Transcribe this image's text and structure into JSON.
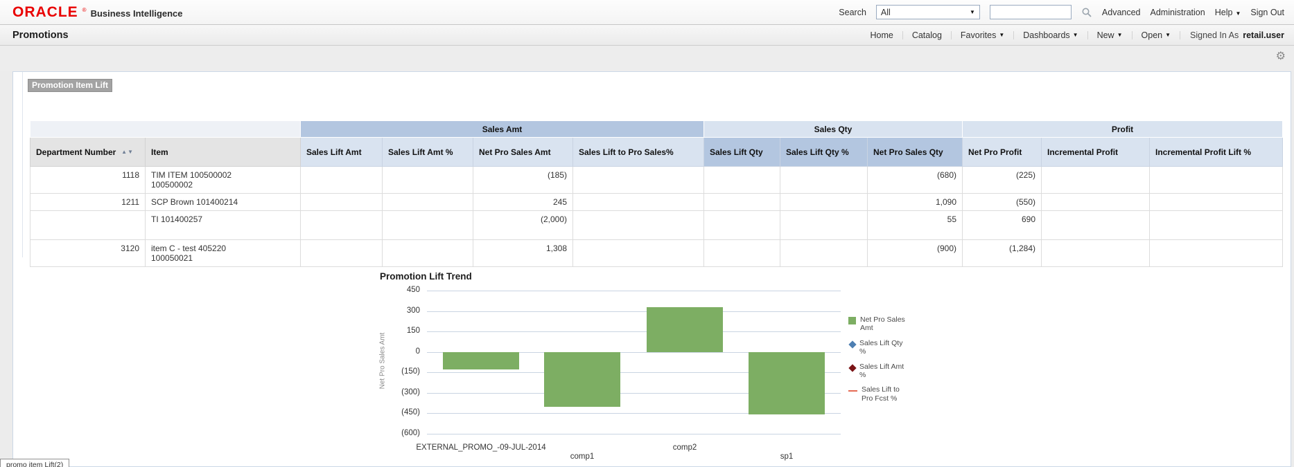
{
  "brand": {
    "logo": "ORACLE",
    "registered": "®",
    "product": "Business Intelligence"
  },
  "topbar": {
    "search_label": "Search",
    "search_scope": "All",
    "search_value": "",
    "advanced": "Advanced",
    "administration": "Administration",
    "help": "Help",
    "sign_out": "Sign Out"
  },
  "navbar": {
    "page_title": "Promotions",
    "home": "Home",
    "catalog": "Catalog",
    "favorites": "Favorites",
    "dashboards": "Dashboards",
    "new": "New",
    "open": "Open",
    "signed_in_as": "Signed In As",
    "user": "retail.user"
  },
  "report": {
    "title": "Promotion Item Lift"
  },
  "table": {
    "groups": [
      {
        "label": "",
        "span": 2,
        "tone": "plain"
      },
      {
        "label": "Sales Amt",
        "span": 4,
        "tone": "medium"
      },
      {
        "label": "Sales Qty",
        "span": 3,
        "tone": "light"
      },
      {
        "label": "Profit",
        "span": 3,
        "tone": "light"
      }
    ],
    "columns": [
      "Department Number",
      "Item",
      "Sales Lift Amt",
      "Sales Lift Amt %",
      "Net Pro Sales Amt",
      "Sales Lift to Pro Sales%",
      "Sales Lift Qty",
      "Sales Lift Qty %",
      "Net Pro Sales Qty",
      "Net Pro Profit",
      "Incremental Profit",
      "Incremental Profit Lift %"
    ],
    "rows": [
      [
        "1118",
        "TIM ITEM 100500002 100500002",
        "",
        "",
        "(185)",
        "",
        "",
        "",
        "(680)",
        "(225)",
        "",
        ""
      ],
      [
        "1211",
        "SCP Brown 101400214",
        "",
        "",
        "245",
        "",
        "",
        "",
        "1,090",
        "(550)",
        "",
        ""
      ],
      [
        "",
        "TI 101400257",
        "",
        "",
        "(2,000)",
        "",
        "",
        "",
        "55",
        "690",
        "",
        ""
      ],
      [
        "3120",
        "item C - test 405220 100050021",
        "",
        "",
        "1,308",
        "",
        "",
        "",
        "(900)",
        "(1,284)",
        "",
        ""
      ]
    ]
  },
  "chart_data": {
    "type": "bar",
    "title": "Promotion Lift Trend",
    "ylabel": "Net Pro Sales Amt",
    "xlabel": "",
    "categories": [
      "EXTERNAL_PROMO_-09-JUL-2014",
      "comp1",
      "comp2",
      "sp1"
    ],
    "series": [
      {
        "name": "Net Pro Sales Amt",
        "color": "#7dae63",
        "values": [
          -130,
          -400,
          330,
          -460
        ]
      }
    ],
    "ylim": [
      -600,
      450
    ],
    "ytick_step": 150,
    "ytick_labels": [
      "450",
      "300",
      "150",
      "0",
      "(150)",
      "(300)",
      "(450)",
      "(600)"
    ],
    "grid": true,
    "legend_position": "right",
    "legend": [
      {
        "label": "Net Pro Sales Amt",
        "marker": "square",
        "color": "#7dae63"
      },
      {
        "label": "Sales Lift Qty %",
        "marker": "diamond",
        "color": "#4e7fb2"
      },
      {
        "label": "Sales Lift Amt %",
        "marker": "diamond",
        "color": "#7a1416"
      },
      {
        "label": "Sales Lift to Pro Fcst %",
        "marker": "line",
        "color": "#e56a54"
      }
    ]
  },
  "status_fragment": "promo item Lift(2)"
}
